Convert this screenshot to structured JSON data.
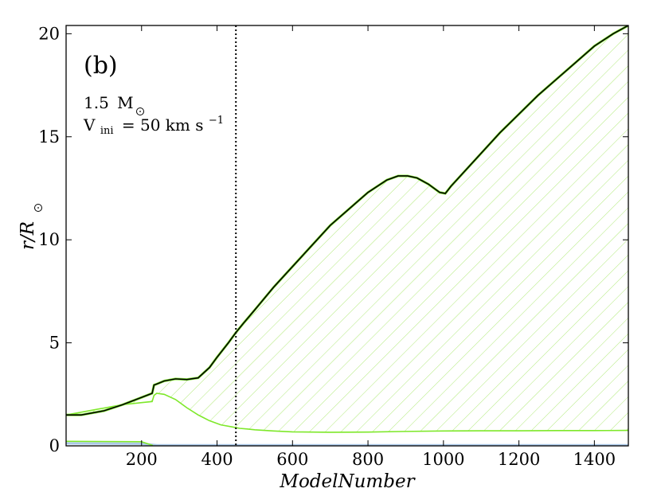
{
  "chart_data": {
    "type": "line",
    "panel_label": "(b)",
    "annotation": {
      "mass_value": "1.5",
      "mass_unit": "M",
      "v_symbol": "V",
      "v_subscript": "ini",
      "v_equals": "= 50 km s",
      "v_exponent": "−1"
    },
    "xlabel": "ModelNumber",
    "ylabel_main": "r/R",
    "xlim": [
      0,
      1490
    ],
    "ylim": [
      0,
      20.4
    ],
    "x_ticks": [
      200,
      400,
      600,
      800,
      1000,
      1200,
      1400
    ],
    "x_tick_labels": [
      "200",
      "400",
      "600",
      "800",
      "1000",
      "1200",
      "1400"
    ],
    "y_ticks": [
      0,
      5,
      10,
      15,
      20
    ],
    "y_tick_labels": [
      "0",
      "5",
      "10",
      "15",
      "20"
    ],
    "vertical_marker_x": 450,
    "colors": {
      "surface": "#000000",
      "surface_shadow": "#7ee82a",
      "convective_base": "#7ee82a",
      "hatch": "#a8e86a",
      "core_blue": "#aac8e8",
      "core_green": "#7ee82a"
    },
    "series": [
      {
        "role": "surface-radius",
        "x": [
          0,
          40,
          100,
          150,
          200,
          228,
          233,
          240,
          260,
          290,
          320,
          350,
          380,
          400,
          430,
          450,
          470,
          500,
          550,
          600,
          650,
          700,
          750,
          800,
          850,
          880,
          905,
          930,
          960,
          990,
          1005,
          1020,
          1050,
          1100,
          1150,
          1200,
          1250,
          1300,
          1350,
          1400,
          1450,
          1490
        ],
        "y": [
          1.5,
          1.5,
          1.7,
          2.0,
          2.35,
          2.55,
          2.95,
          3.0,
          3.15,
          3.25,
          3.22,
          3.3,
          3.8,
          4.3,
          5.0,
          5.5,
          5.95,
          6.6,
          7.7,
          8.7,
          9.7,
          10.7,
          11.5,
          12.3,
          12.9,
          13.1,
          13.1,
          13.0,
          12.7,
          12.3,
          12.25,
          12.6,
          13.2,
          14.2,
          15.2,
          16.1,
          17.0,
          17.8,
          18.6,
          19.4,
          20.0,
          20.4
        ]
      },
      {
        "role": "convective-envelope-base",
        "x": [
          0,
          150,
          200,
          228,
          233,
          240,
          260,
          290,
          320,
          350,
          380,
          410,
          440,
          460,
          480,
          500,
          550,
          600,
          700,
          800,
          900,
          1000,
          1100,
          1200,
          1300,
          1400,
          1490
        ],
        "y": [
          1.5,
          2.0,
          2.1,
          2.15,
          2.45,
          2.55,
          2.5,
          2.25,
          1.85,
          1.5,
          1.22,
          1.02,
          0.92,
          0.85,
          0.82,
          0.78,
          0.72,
          0.68,
          0.66,
          0.67,
          0.7,
          0.72,
          0.73,
          0.73,
          0.74,
          0.74,
          0.75
        ]
      }
    ]
  }
}
